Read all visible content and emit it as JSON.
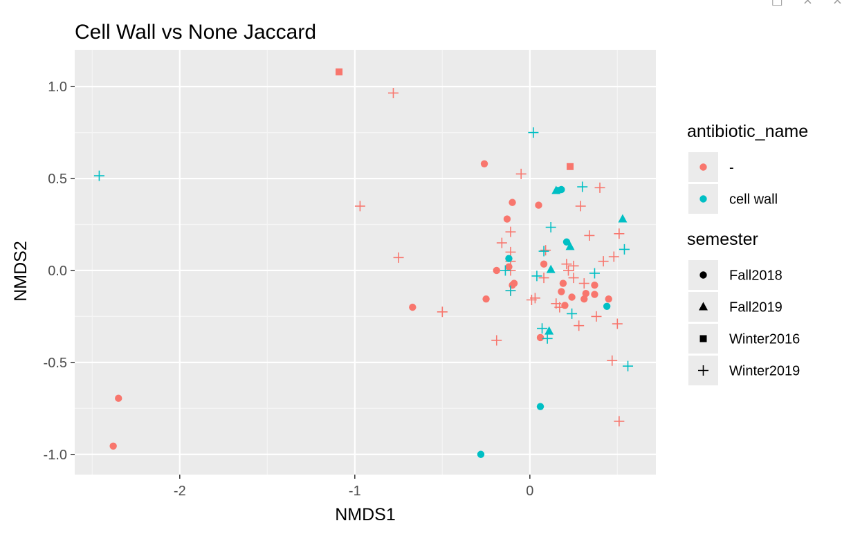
{
  "window_controls": {
    "popout_icon": "popout-icon",
    "minimize_glyph": "×",
    "close_glyph": "×"
  },
  "colors": {
    "panel": "#EBEBEB",
    "grid_major": "#FFFFFF",
    "grid_minor": "#F5F5F5",
    "axis_text": "#4D4D4D",
    "text": "#000000",
    "red": "#F8766D",
    "teal": "#00BFC4"
  },
  "chart_data": {
    "type": "scatter",
    "title": "Cell Wall vs None Jaccard",
    "xlabel": "NMDS1",
    "ylabel": "NMDS2",
    "xlim": [
      -2.6,
      0.72
    ],
    "ylim": [
      -1.11,
      1.2
    ],
    "x_ticks": [
      -2,
      -1,
      0
    ],
    "x_tick_labels": [
      "-2",
      "-1",
      "0"
    ],
    "y_ticks": [
      -1.0,
      -0.5,
      0.0,
      0.5,
      1.0
    ],
    "y_tick_labels": [
      "-1.0",
      "-0.5",
      "0.0",
      "0.5",
      "1.0"
    ],
    "grid": true,
    "legend_placement": "right",
    "legends": [
      {
        "title": "antibiotic_name",
        "kind": "color",
        "entries": [
          {
            "label": "-",
            "color": "#F8766D"
          },
          {
            "label": "cell wall",
            "color": "#00BFC4"
          }
        ]
      },
      {
        "title": "semester",
        "kind": "shape",
        "entries": [
          {
            "label": "Fall2018",
            "shape": "circle"
          },
          {
            "label": "Fall2019",
            "shape": "triangle"
          },
          {
            "label": "Winter2016",
            "shape": "square"
          },
          {
            "label": "Winter2019",
            "shape": "plus"
          }
        ]
      }
    ],
    "series": [
      {
        "antibiotic": "-",
        "semester": "Fall2018",
        "points": [
          [
            -0.26,
            0.58
          ],
          [
            -0.1,
            0.37
          ],
          [
            -0.13,
            0.28
          ],
          [
            -0.12,
            0.02
          ],
          [
            -0.19,
            0.0
          ],
          [
            -0.09,
            -0.07
          ],
          [
            -0.1,
            -0.08
          ],
          [
            -0.25,
            -0.155
          ],
          [
            -0.67,
            -0.2
          ],
          [
            -2.35,
            -0.695
          ],
          [
            -2.38,
            -0.955
          ],
          [
            0.05,
            0.355
          ],
          [
            0.08,
            0.035
          ],
          [
            0.19,
            -0.07
          ],
          [
            0.18,
            -0.115
          ],
          [
            0.2,
            -0.19
          ],
          [
            0.06,
            -0.365
          ],
          [
            0.24,
            -0.145
          ],
          [
            0.32,
            -0.125
          ],
          [
            0.31,
            -0.155
          ],
          [
            0.37,
            -0.08
          ],
          [
            0.37,
            -0.13
          ],
          [
            0.45,
            -0.155
          ]
        ]
      },
      {
        "antibiotic": "-",
        "semester": "Winter2016",
        "points": [
          [
            -1.09,
            1.08
          ],
          [
            0.23,
            0.565
          ]
        ]
      },
      {
        "antibiotic": "-",
        "semester": "Winter2019",
        "points": [
          [
            -0.78,
            0.965
          ],
          [
            -0.05,
            0.525
          ],
          [
            -0.97,
            0.35
          ],
          [
            -0.75,
            0.07
          ],
          [
            -0.5,
            -0.225
          ],
          [
            -0.19,
            -0.38
          ],
          [
            -0.11,
            0.21
          ],
          [
            -0.16,
            0.15
          ],
          [
            -0.11,
            0.1
          ],
          [
            -0.11,
            0.05
          ],
          [
            -0.11,
            0.0
          ],
          [
            -0.11,
            -0.11
          ],
          [
            0.01,
            -0.16
          ],
          [
            0.03,
            -0.15
          ],
          [
            0.08,
            -0.04
          ],
          [
            0.09,
            0.11
          ],
          [
            0.15,
            -0.18
          ],
          [
            0.17,
            -0.2
          ],
          [
            0.21,
            0.035
          ],
          [
            0.22,
            0.0
          ],
          [
            0.25,
            0.025
          ],
          [
            0.25,
            -0.04
          ],
          [
            0.28,
            -0.3
          ],
          [
            0.29,
            0.35
          ],
          [
            0.31,
            -0.07
          ],
          [
            0.34,
            0.19
          ],
          [
            0.38,
            -0.25
          ],
          [
            0.4,
            0.45
          ],
          [
            0.42,
            0.05
          ],
          [
            0.47,
            -0.49
          ],
          [
            0.48,
            0.075
          ],
          [
            0.5,
            -0.29
          ],
          [
            0.51,
            0.2
          ],
          [
            0.51,
            -0.82
          ]
        ]
      },
      {
        "antibiotic": "cell wall",
        "semester": "Fall2018",
        "points": [
          [
            0.16,
            0.435
          ],
          [
            0.18,
            0.44
          ],
          [
            0.21,
            0.155
          ],
          [
            -0.12,
            0.065
          ],
          [
            0.44,
            -0.195
          ],
          [
            0.06,
            -0.74
          ],
          [
            -0.28,
            -1.0
          ]
        ]
      },
      {
        "antibiotic": "cell wall",
        "semester": "Fall2019",
        "points": [
          [
            0.15,
            0.435
          ],
          [
            0.53,
            0.28
          ],
          [
            0.23,
            0.13
          ],
          [
            0.12,
            0.005
          ],
          [
            0.11,
            -0.33
          ]
        ]
      },
      {
        "antibiotic": "cell wall",
        "semester": "Winter2019",
        "points": [
          [
            -2.46,
            0.515
          ],
          [
            0.02,
            0.75
          ],
          [
            0.3,
            0.455
          ],
          [
            0.12,
            0.235
          ],
          [
            0.08,
            0.105
          ],
          [
            0.54,
            0.115
          ],
          [
            -0.14,
            0.0
          ],
          [
            0.04,
            -0.03
          ],
          [
            -0.11,
            -0.11
          ],
          [
            0.37,
            -0.015
          ],
          [
            0.24,
            -0.235
          ],
          [
            0.07,
            -0.315
          ],
          [
            0.1,
            -0.37
          ],
          [
            0.56,
            -0.52
          ]
        ]
      }
    ]
  }
}
